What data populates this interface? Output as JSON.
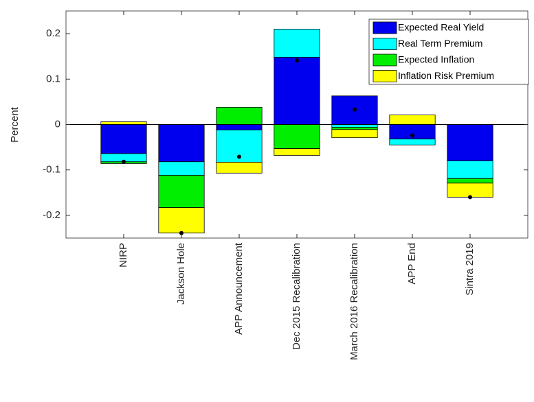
{
  "chart_data": {
    "type": "stacked-bar",
    "y_label": "Percent",
    "categories": [
      "NIRP",
      "Jackson Hole",
      "APP Announcement",
      "Dec 2015 Recalibration",
      "March 2016 Recalibration",
      "APP End",
      "Sintra 2019"
    ],
    "series": [
      {
        "name": "Expected Real Yield",
        "color": "#0000ee",
        "values": [
          -0.064,
          -0.082,
          -0.012,
          0.148,
          0.063,
          -0.032,
          -0.08
        ]
      },
      {
        "name": "Real Term Premium",
        "color": "#00ffff",
        "values": [
          -0.018,
          -0.03,
          -0.071,
          0.062,
          -0.006,
          -0.013,
          -0.039
        ]
      },
      {
        "name": "Expected Inflation",
        "color": "#00ee00",
        "values": [
          -0.004,
          -0.071,
          0.038,
          -0.053,
          -0.005,
          0,
          -0.01
        ]
      },
      {
        "name": "Inflation Risk Premium",
        "color": "#ffff00",
        "values": [
          0.006,
          -0.056,
          -0.024,
          -0.015,
          -0.018,
          0.021,
          -0.031
        ]
      }
    ],
    "points": {
      "color": "#000000",
      "values": [
        -0.082,
        -0.239,
        -0.071,
        0.141,
        0.033,
        -0.024,
        -0.16
      ]
    },
    "ylim": [
      -0.25,
      0.25
    ],
    "yticks": [
      -0.2,
      -0.1,
      0,
      0.1,
      0.2
    ],
    "legend": "top-right"
  }
}
